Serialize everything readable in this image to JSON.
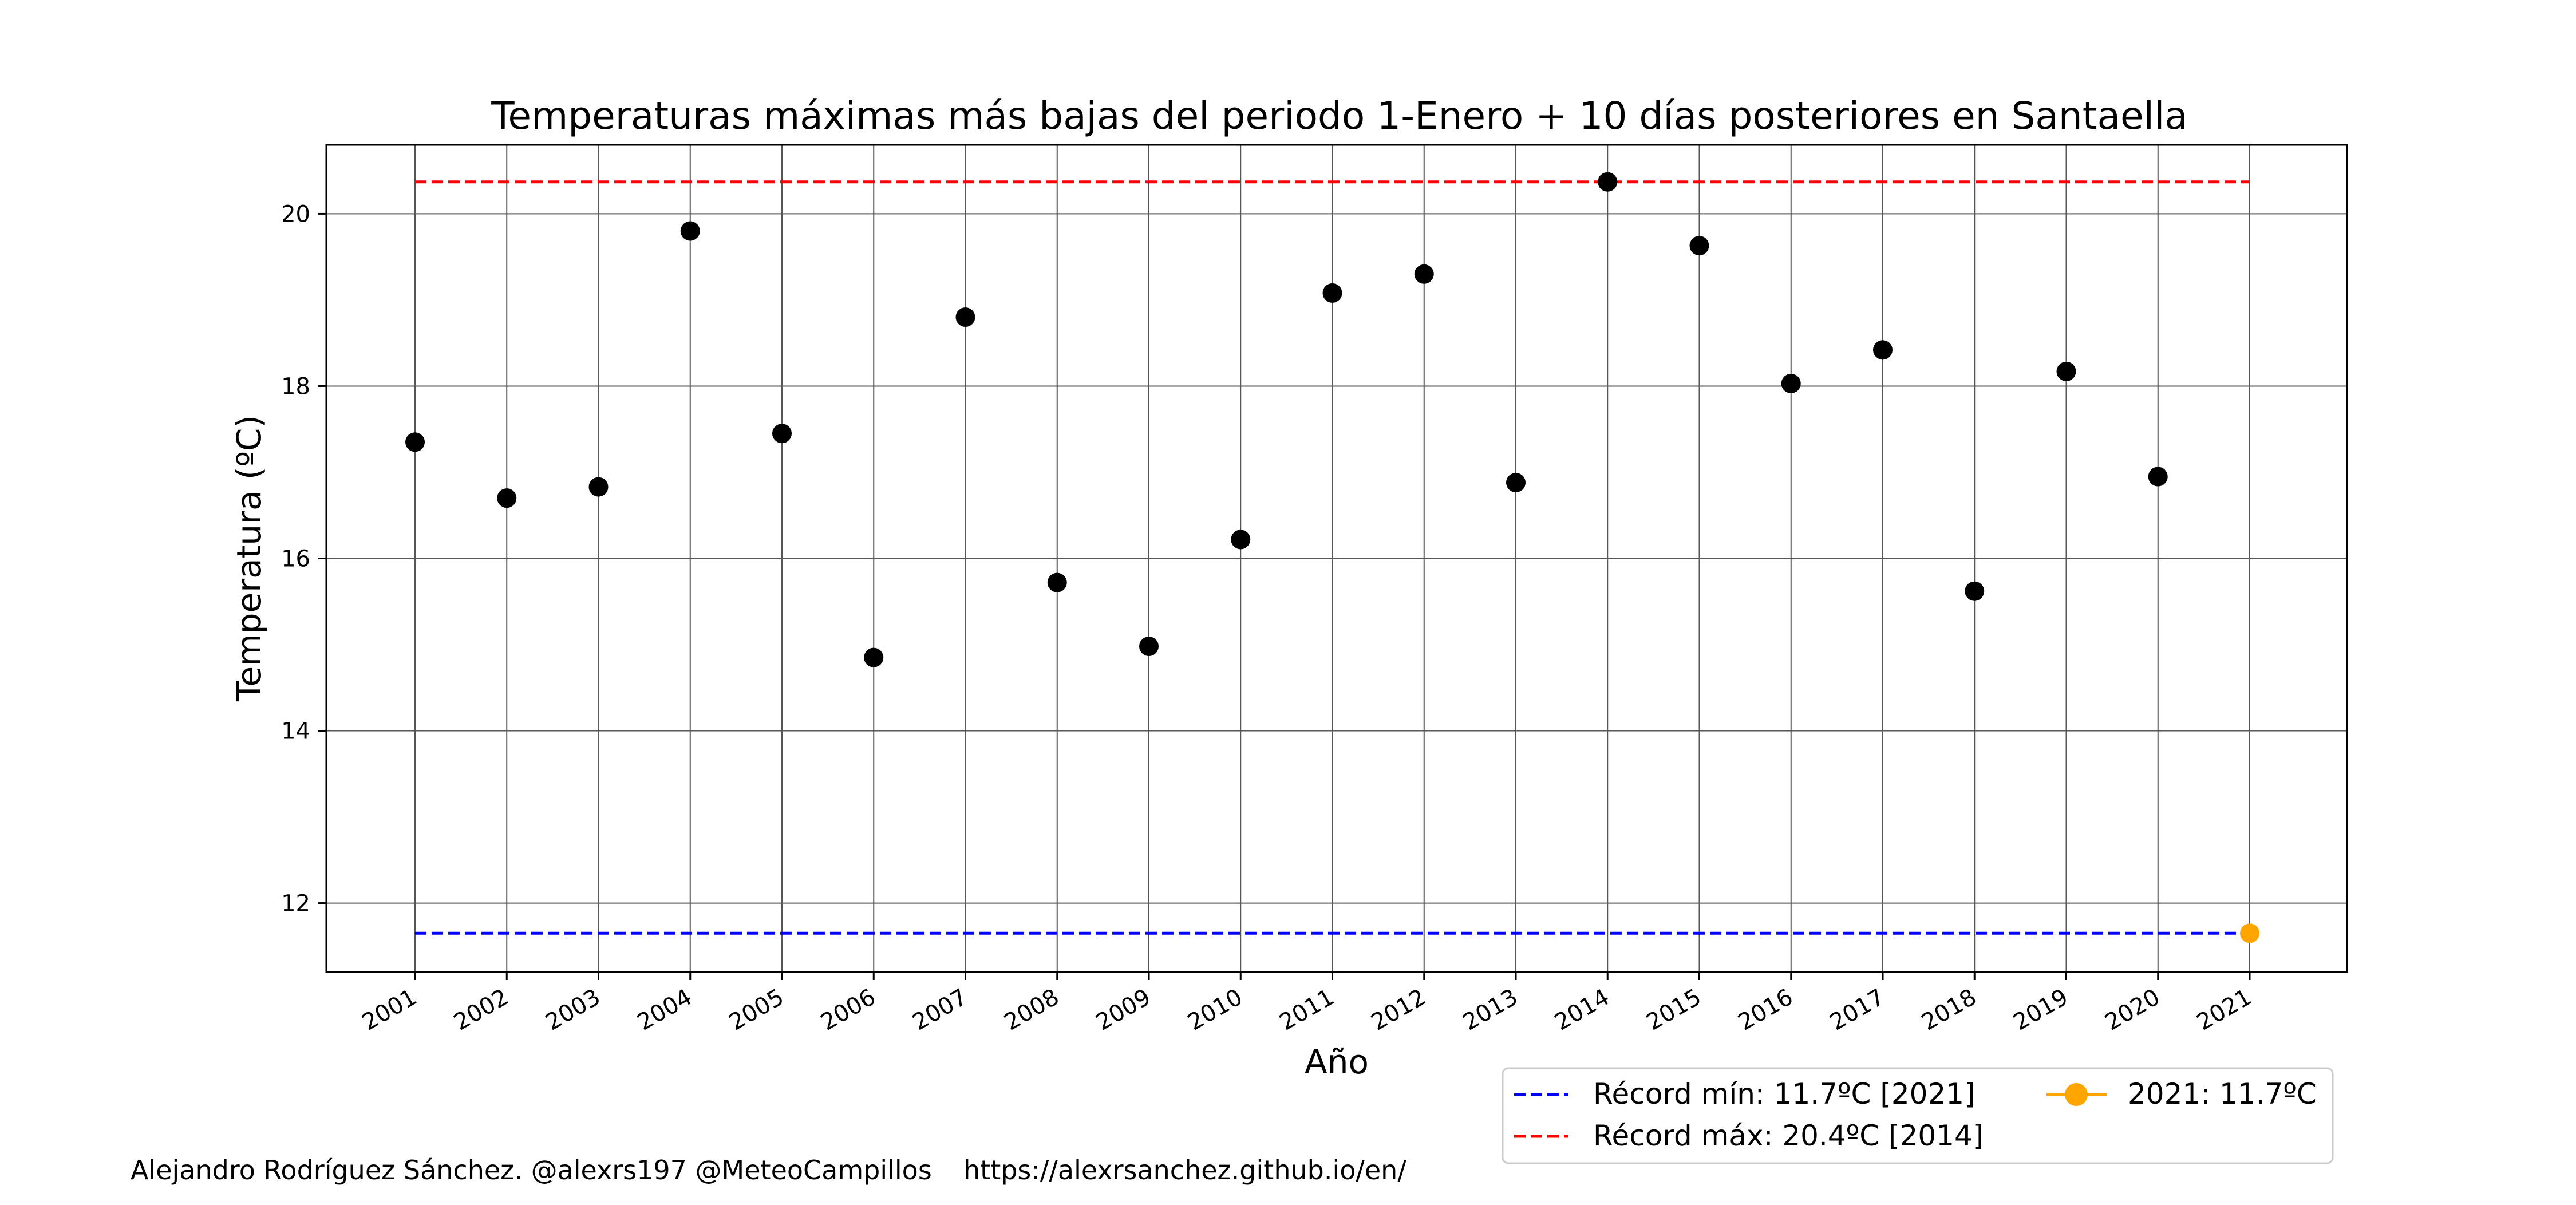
{
  "chart_data": {
    "type": "scatter",
    "title": "Temperaturas máximas más bajas del periodo 1-Enero + 10 días posteriores en Santaella",
    "xlabel": "Año",
    "ylabel": "Temperatura (ºC)",
    "categories": [
      "2001",
      "2002",
      "2003",
      "2004",
      "2005",
      "2006",
      "2007",
      "2008",
      "2009",
      "2010",
      "2011",
      "2012",
      "2013",
      "2014",
      "2015",
      "2016",
      "2017",
      "2018",
      "2019",
      "2020",
      "2021"
    ],
    "series": [
      {
        "role": "past-years",
        "color": "#000000",
        "values": [
          17.35,
          16.7,
          16.83,
          19.8,
          17.45,
          14.85,
          18.8,
          15.72,
          14.98,
          16.22,
          19.08,
          19.3,
          16.88,
          20.37,
          19.63,
          18.03,
          18.42,
          15.62,
          18.17,
          16.95,
          null
        ]
      },
      {
        "name": "2021: 11.7ºC",
        "role": "current-year",
        "color": "#ffa500",
        "values": [
          null,
          null,
          null,
          null,
          null,
          null,
          null,
          null,
          null,
          null,
          null,
          null,
          null,
          null,
          null,
          null,
          null,
          null,
          null,
          null,
          11.65
        ]
      }
    ],
    "reference_lines": [
      {
        "name": "Récord mín: 11.7ºC [2021]",
        "value": 11.65,
        "color": "#0000ff",
        "style": "dashed"
      },
      {
        "name": "Récord máx: 20.4ºC [2014]",
        "value": 20.37,
        "color": "#ff0000",
        "style": "dashed"
      }
    ],
    "ylim": [
      11.2,
      20.8
    ],
    "yticks": [
      12,
      14,
      16,
      18,
      20
    ],
    "grid": true,
    "legend_position": "below-right"
  },
  "footer": {
    "credit": "Alejandro Rodríguez Sánchez. @alexrs197 @MeteoCampillos",
    "url": "https://alexrsanchez.github.io/en/"
  }
}
